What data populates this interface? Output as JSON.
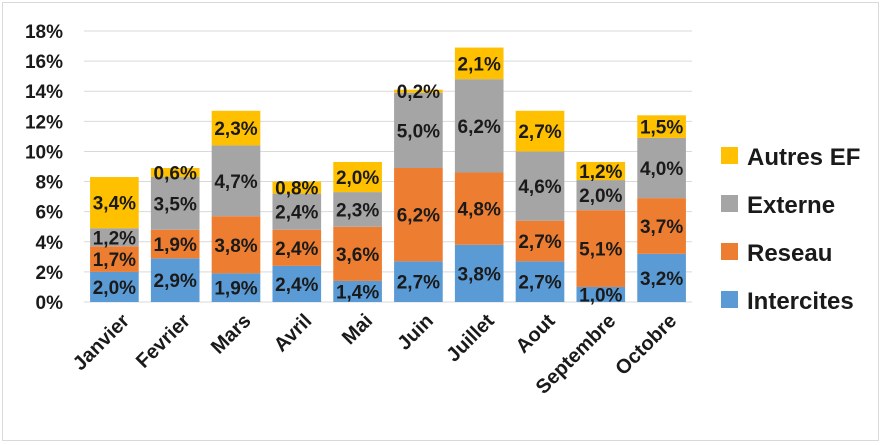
{
  "chart_data": {
    "type": "bar",
    "stacked": true,
    "title": "",
    "xlabel": "",
    "ylabel": "",
    "ylim": [
      0,
      18
    ],
    "y_ticks": [
      "0%",
      "2%",
      "4%",
      "6%",
      "8%",
      "10%",
      "12%",
      "14%",
      "16%",
      "18%"
    ],
    "grid": true,
    "legend_position": "right",
    "categories": [
      "Janvier",
      "Fevrier",
      "Mars",
      "Avril",
      "Mai",
      "Juin",
      "Juillet",
      "Aout",
      "Septembre",
      "Octobre"
    ],
    "series": [
      {
        "name": "Intercites",
        "color": "#5b9bd5",
        "values": [
          2.0,
          2.9,
          1.9,
          2.4,
          1.4,
          2.7,
          3.8,
          2.7,
          1.0,
          3.2
        ],
        "labels": [
          "2,0%",
          "2,9%",
          "1,9%",
          "2,4%",
          "1,4%",
          "2,7%",
          "3,8%",
          "2,7%",
          "1,0%",
          "3,2%"
        ]
      },
      {
        "name": "Reseau",
        "color": "#ed7d31",
        "values": [
          1.7,
          1.9,
          3.8,
          2.4,
          3.6,
          6.2,
          4.8,
          2.7,
          5.1,
          3.7
        ],
        "labels": [
          "1,7%",
          "1,9%",
          "3,8%",
          "2,4%",
          "3,6%",
          "6,2%",
          "4,8%",
          "2,7%",
          "5,1%",
          "3,7%"
        ]
      },
      {
        "name": "Externe",
        "color": "#a5a5a5",
        "values": [
          1.2,
          3.5,
          4.7,
          2.4,
          2.3,
          5.0,
          6.2,
          4.6,
          2.0,
          4.0
        ],
        "labels": [
          "1,2%",
          "3,5%",
          "4,7%",
          "2,4%",
          "2,3%",
          "5,0%",
          "6,2%",
          "4,6%",
          "2,0%",
          "4,0%"
        ]
      },
      {
        "name": "Autres EF",
        "color": "#ffc000",
        "values": [
          3.4,
          0.6,
          2.3,
          0.8,
          2.0,
          0.2,
          2.1,
          2.7,
          1.2,
          1.5
        ],
        "labels": [
          "3,4%",
          "0,6%",
          "2,3%",
          "0,8%",
          "2,0%",
          "0,2%",
          "2,1%",
          "2,7%",
          "1,2%",
          "1,5%"
        ]
      }
    ]
  }
}
